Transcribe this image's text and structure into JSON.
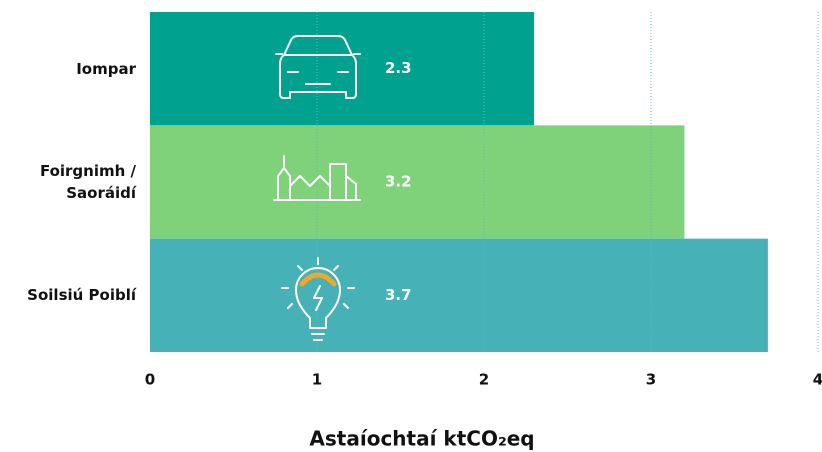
{
  "chart_data": {
    "type": "bar",
    "orientation": "horizontal",
    "categories": [
      "Iompar",
      "Foirgnimh / Saoráidí",
      "Soilsiú Poiblí"
    ],
    "values": [
      2.3,
      3.2,
      3.7
    ],
    "colors": [
      "#00a28f",
      "#80d27a",
      "#46b1b6"
    ],
    "xlabel": "Astaíochtaí ktCO₂eq",
    "xlim": [
      0,
      4
    ],
    "xticks": [
      0,
      1,
      2,
      3,
      4
    ],
    "grid": true
  }
}
